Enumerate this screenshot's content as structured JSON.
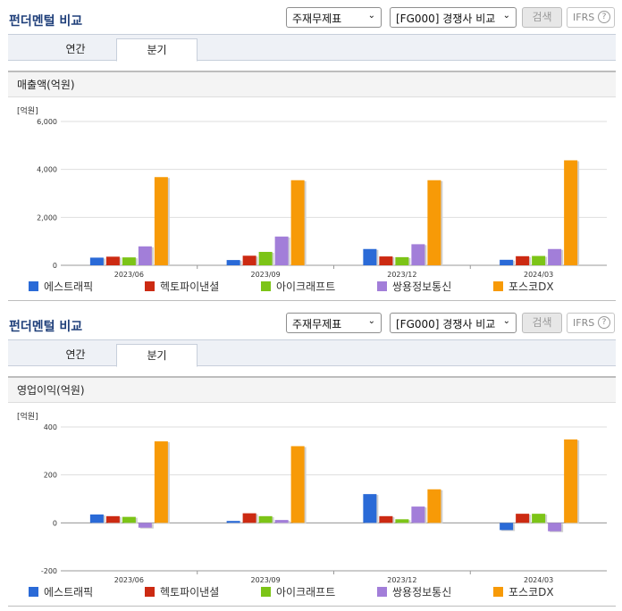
{
  "colors": {
    "series": [
      "#2a6ad7",
      "#cc2a12",
      "#7cc417",
      "#a27ed9",
      "#f79a07"
    ]
  },
  "panels": [
    {
      "title": "펀더멘털 비교",
      "select1": "주재무제표",
      "select2": "[FG000] 경쟁사 비교",
      "search_label": "검색",
      "ifrs_label": "IFRS",
      "help_label": "?",
      "tab_annual": "연간",
      "tab_quarter": "분기",
      "section_title": "매출액(억원)",
      "unit": "[억원]",
      "legend": [
        "에스트래픽",
        "헥토파이낸셜",
        "아이크래프트",
        "쌍용정보통신",
        "포스코DX"
      ]
    },
    {
      "title": "펀더멘털 비교",
      "select1": "주재무제표",
      "select2": "[FG000] 경쟁사 비교",
      "search_label": "검색",
      "ifrs_label": "IFRS",
      "help_label": "?",
      "tab_annual": "연간",
      "tab_quarter": "분기",
      "section_title": "영업이익(억원)",
      "unit": "[억원]",
      "legend": [
        "에스트래픽",
        "헥토파이낸셜",
        "아이크래프트",
        "쌍용정보통신",
        "포스코DX"
      ]
    }
  ],
  "chart_data": [
    {
      "type": "bar",
      "title": "매출액(억원)",
      "ylabel": "[억원]",
      "categories": [
        "2023/06",
        "2023/09",
        "2023/12",
        "2024/03"
      ],
      "ylim": [
        0,
        6000
      ],
      "yticks": [
        0,
        2000,
        4000,
        6000
      ],
      "ytick_labels": [
        "0",
        "2,000",
        "4,000",
        "6,000"
      ],
      "series": [
        {
          "name": "에스트래픽",
          "values": [
            320,
            220,
            680,
            230
          ]
        },
        {
          "name": "헥토파이낸셜",
          "values": [
            360,
            400,
            370,
            380
          ]
        },
        {
          "name": "아이크래프트",
          "values": [
            330,
            560,
            340,
            390
          ]
        },
        {
          "name": "쌍용정보통신",
          "values": [
            790,
            1200,
            880,
            680
          ]
        },
        {
          "name": "포스코DX",
          "values": [
            3680,
            3550,
            3550,
            4380
          ]
        }
      ]
    },
    {
      "type": "bar",
      "title": "영업이익(억원)",
      "ylabel": "[억원]",
      "categories": [
        "2023/06",
        "2023/09",
        "2023/12",
        "2024/03"
      ],
      "ylim": [
        -200,
        400
      ],
      "yticks": [
        -200,
        0,
        200,
        400
      ],
      "ytick_labels": [
        "-200",
        "0",
        "200",
        "400"
      ],
      "series": [
        {
          "name": "에스트래픽",
          "values": [
            35,
            8,
            120,
            -30
          ]
        },
        {
          "name": "헥토파이낸셜",
          "values": [
            28,
            40,
            28,
            38
          ]
        },
        {
          "name": "아이크래프트",
          "values": [
            25,
            28,
            15,
            38
          ]
        },
        {
          "name": "쌍용정보통신",
          "values": [
            -20,
            12,
            68,
            -35
          ]
        },
        {
          "name": "포스코DX",
          "values": [
            340,
            320,
            140,
            348
          ]
        }
      ]
    }
  ]
}
